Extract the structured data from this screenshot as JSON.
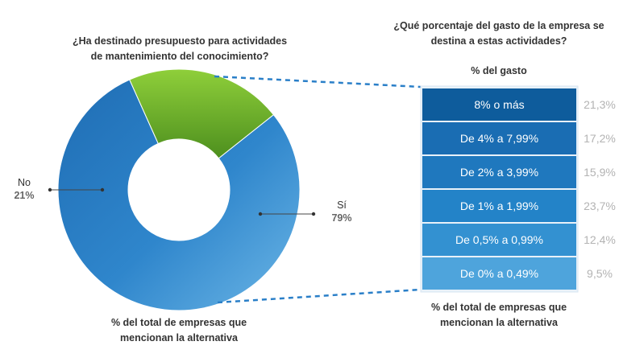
{
  "chart_data": [
    {
      "type": "pie",
      "title": "¿Ha destinado presupuesto para actividades de mantenimiento del conocimiento?",
      "title_lines": [
        "¿Ha destinado presupuesto para actividades",
        "de mantenimiento del conocimiento?"
      ],
      "subtitle_lines": [
        "% del total de empresas que",
        "mencionan la alternativa"
      ],
      "slices": [
        {
          "label": "Sí",
          "value": 79,
          "value_label": "79%"
        },
        {
          "label": "No",
          "value": 21,
          "value_label": "21%"
        }
      ],
      "colors": {
        "Sí": "#2e7fc7",
        "No": "#6fb92f"
      }
    },
    {
      "type": "bar",
      "title": "¿Qué porcentaje del gasto de la empresa se destina a estas actividades?",
      "title_lines": [
        "¿Qué porcentaje del gasto de la empresa se",
        "destina a estas actividades?"
      ],
      "header": "% del gasto",
      "subtitle_lines": [
        "% del total de empresas que",
        "mencionan la alternativa"
      ],
      "categories": [
        "8% o más",
        "De 4% a 7,99%",
        "De 2% a 3,99%",
        "De 1% a 1,99%",
        "De 0,5% a 0,99%",
        "De 0% a 0,49%"
      ],
      "values": [
        21.3,
        17.2,
        15.9,
        23.7,
        12.4,
        9.5
      ],
      "value_labels": [
        "21,3%",
        "17,2%",
        "15,9%",
        "23,7%",
        "12,4%",
        "9,5%"
      ],
      "colors": [
        "#0e5c9c",
        "#1a6db3",
        "#1f78be",
        "#2383c8",
        "#3391d1",
        "#4ea4dc"
      ]
    }
  ]
}
